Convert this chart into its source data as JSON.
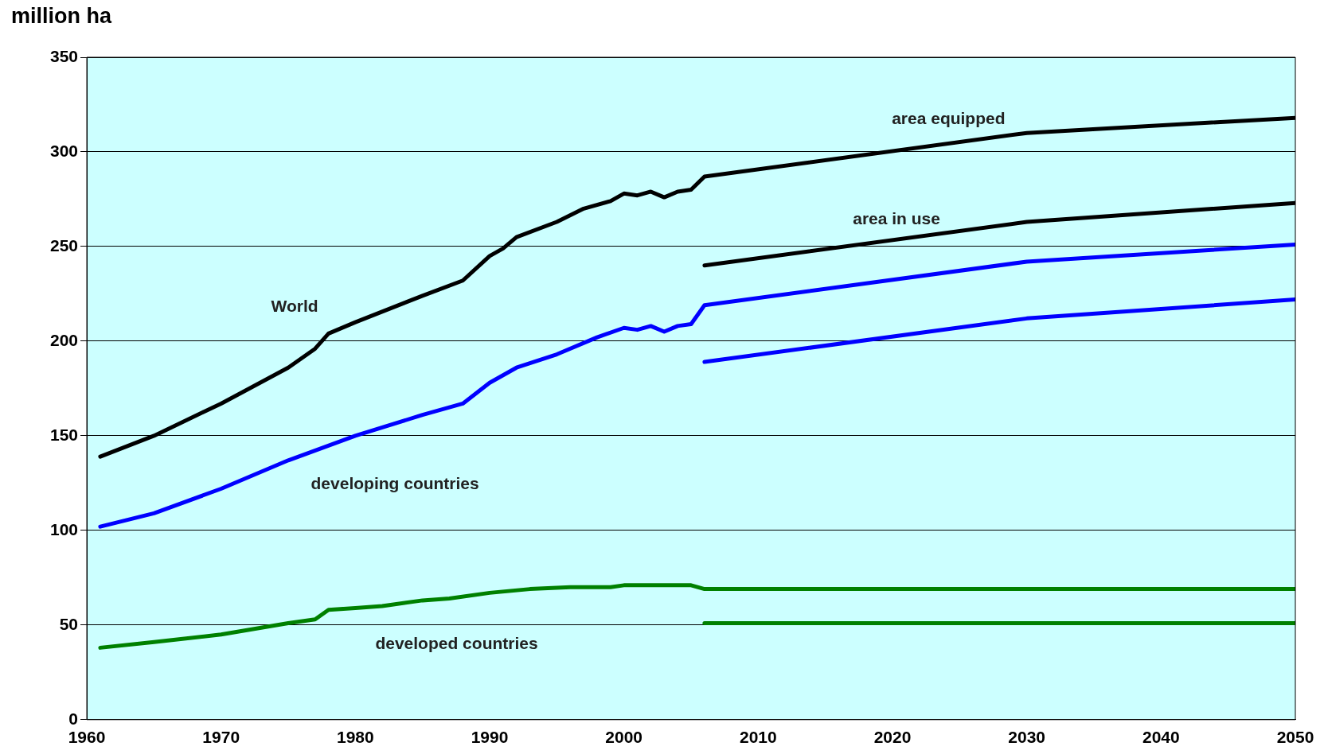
{
  "chart_data": {
    "type": "line",
    "ylabel": "million ha",
    "xlim": [
      1960,
      2050
    ],
    "xticks": [
      1960,
      1970,
      1980,
      1990,
      2000,
      2010,
      2020,
      2030,
      2040,
      2050
    ],
    "ylim": [
      0,
      350
    ],
    "yticks": [
      0,
      50,
      100,
      150,
      200,
      250,
      300,
      350
    ],
    "grid": "y",
    "legend": false,
    "marker": "none",
    "line_style": "solid",
    "series": [
      {
        "color": "#000000",
        "x": [
          1961,
          1965,
          1970,
          1975,
          1977,
          1978,
          1980,
          1985,
          1988,
          1990,
          1991,
          1992,
          1995,
          1997,
          1999,
          2000,
          2001,
          2002,
          2003,
          2004,
          2005,
          2006,
          2030,
          2050
        ],
        "values": [
          139,
          150,
          167,
          186,
          196,
          204,
          210,
          224,
          232,
          245,
          249,
          255,
          263,
          270,
          274,
          278,
          277,
          279,
          276,
          279,
          280,
          287,
          310,
          318
        ]
      },
      {
        "color": "#000000",
        "x": [
          2006,
          2030,
          2050
        ],
        "values": [
          240,
          263,
          273
        ]
      },
      {
        "color": "#0000ff",
        "x": [
          1961,
          1965,
          1970,
          1975,
          1980,
          1985,
          1988,
          1990,
          1992,
          1995,
          1998,
          2000,
          2001,
          2002,
          2003,
          2004,
          2005,
          2006,
          2030,
          2050
        ],
        "values": [
          102,
          109,
          122,
          137,
          150,
          161,
          167,
          178,
          186,
          193,
          202,
          207,
          206,
          208,
          205,
          208,
          209,
          219,
          242,
          251
        ]
      },
      {
        "color": "#0000ff",
        "x": [
          2006,
          2030,
          2050
        ],
        "values": [
          189,
          212,
          222
        ]
      },
      {
        "color": "#008000",
        "x": [
          1961,
          1965,
          1970,
          1975,
          1977,
          1978,
          1980,
          1982,
          1985,
          1987,
          1990,
          1993,
          1996,
          1999,
          2000,
          2005,
          2006,
          2050
        ],
        "values": [
          38,
          41,
          45,
          51,
          53,
          58,
          59,
          60,
          63,
          64,
          67,
          69,
          70,
          70,
          71,
          71,
          69,
          69
        ]
      },
      {
        "color": "#008000",
        "x": [
          2006,
          2050
        ],
        "values": [
          51,
          51
        ]
      }
    ],
    "annotations": [
      "World",
      "developing countries",
      "developed countries",
      "area equipped",
      "area in use"
    ]
  }
}
